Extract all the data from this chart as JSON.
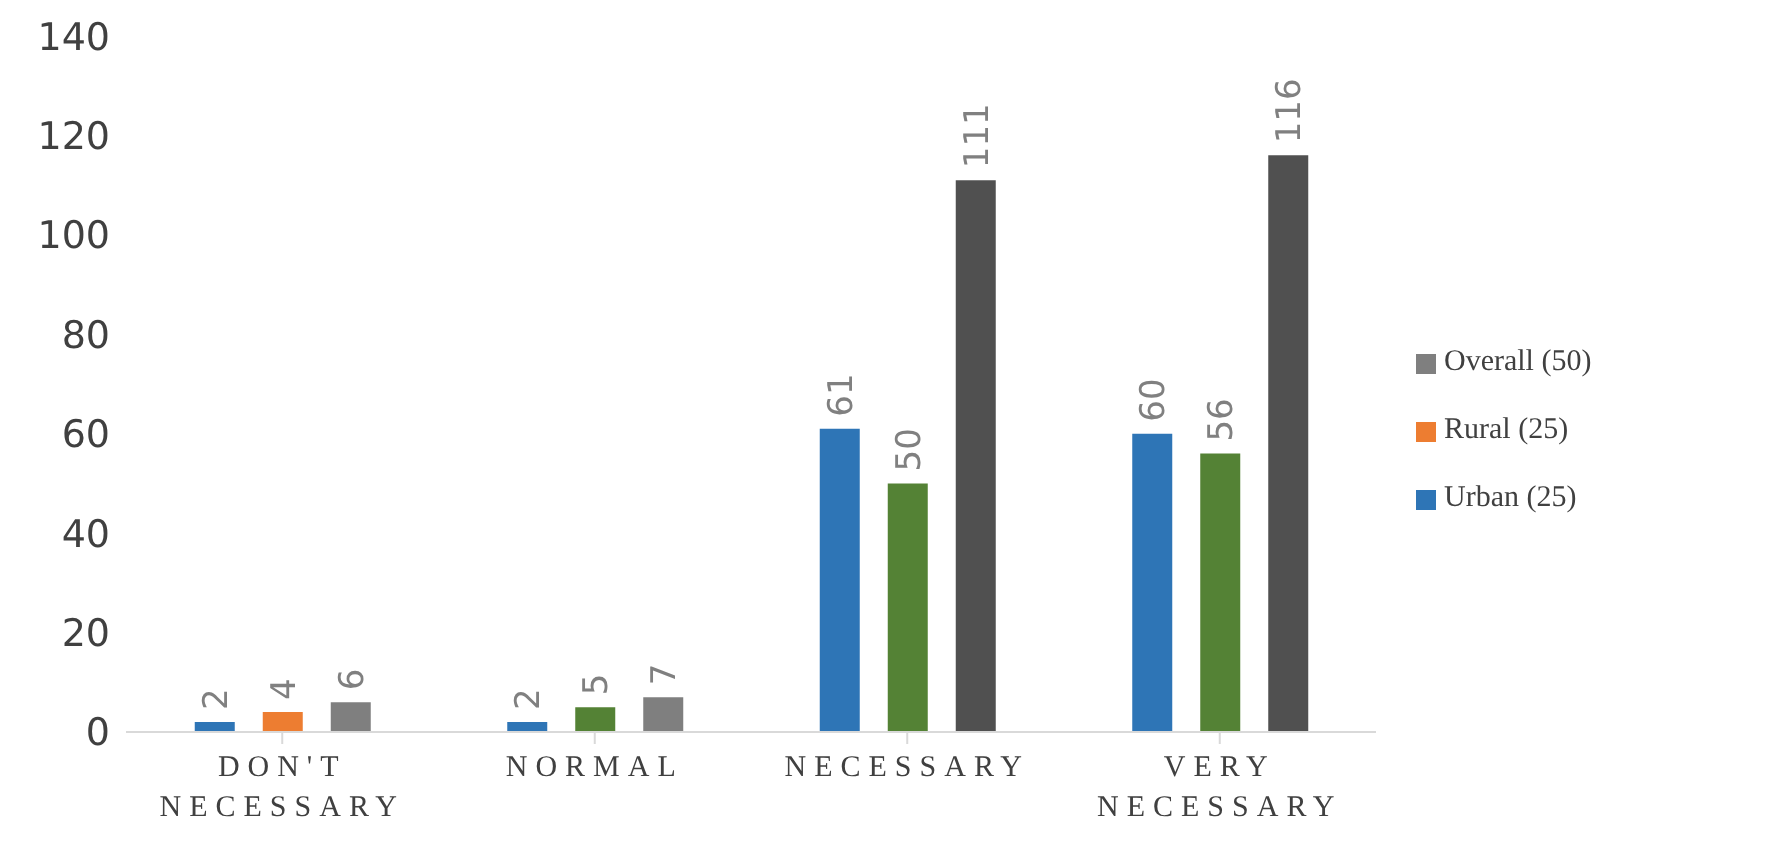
{
  "chart_data": {
    "type": "bar",
    "categories": [
      "DON'T NECESSARY",
      "NORMAL",
      "NECESSARY",
      "VERY NECESSARY"
    ],
    "series": [
      {
        "name": "Urban (25)",
        "color": "#2e75b6",
        "values": [
          2,
          2,
          61,
          60
        ]
      },
      {
        "name": "Rural (25)",
        "color": "#ed7d31",
        "colors": [
          "#ed7d31",
          "#548235",
          "#548235",
          "#548235"
        ],
        "values": [
          4,
          5,
          50,
          56
        ]
      },
      {
        "name": "Overall (50)",
        "color": "#7f7f7f",
        "colors": [
          "#7f7f7f",
          "#7f7f7f",
          "#505050",
          "#505050"
        ],
        "values": [
          6,
          7,
          111,
          116
        ]
      }
    ],
    "ylim": [
      0,
      140
    ],
    "yticks": [
      0,
      20,
      40,
      60,
      80,
      100,
      120,
      140
    ],
    "grid": false,
    "legend": "right",
    "data_labels": true
  }
}
